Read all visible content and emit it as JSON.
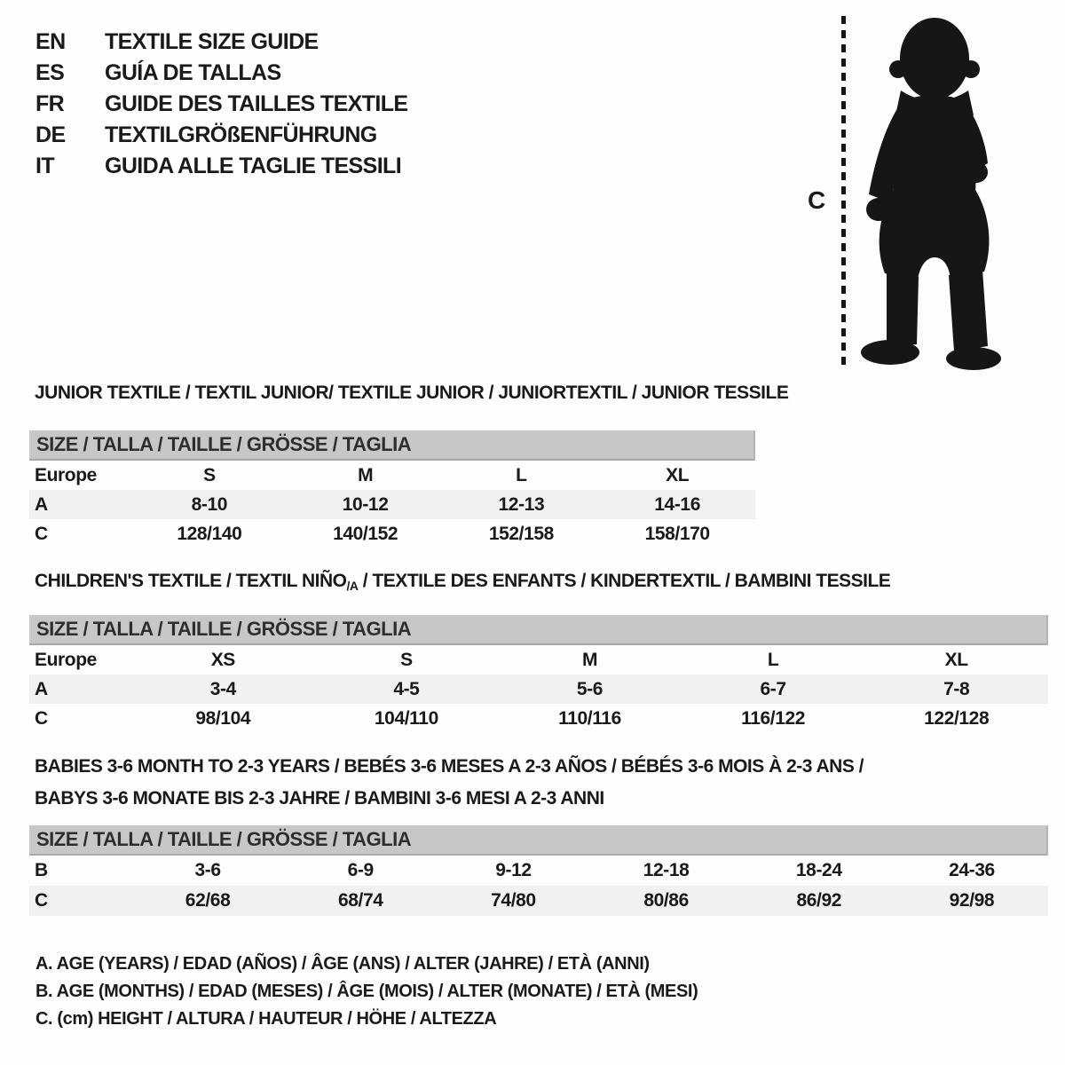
{
  "header": {
    "languages": [
      {
        "code": "EN",
        "title": "TEXTILE SIZE GUIDE"
      },
      {
        "code": "ES",
        "title": "GUÍA DE TALLAS"
      },
      {
        "code": "FR",
        "title": "GUIDE DES TAILLES TEXTILE"
      },
      {
        "code": "DE",
        "title": "TEXTILGRÖßENFÜHRUNG"
      },
      {
        "code": "IT",
        "title": "GUIDA ALLE TAGLIE TESSILI"
      }
    ]
  },
  "figure": {
    "image": "toddler-silhouette",
    "measure_label": "C"
  },
  "sections": [
    {
      "id": "junior",
      "title": "JUNIOR TEXTILE / TEXTIL JUNIOR/ TEXTILE JUNIOR / JUNIORTEXTIL / JUNIOR TESSILE",
      "size_header": "SIZE / TALLA / TAILLE / GRÖSSE / TAGLIA",
      "rows": [
        {
          "label": "Europe",
          "values": [
            "S",
            "M",
            "L",
            "XL"
          ],
          "shaded": false
        },
        {
          "label": "A",
          "values": [
            "8-10",
            "10-12",
            "12-13",
            "14-16"
          ],
          "shaded": true
        },
        {
          "label": "C",
          "values": [
            "128/140",
            "140/152",
            "152/158",
            "158/170"
          ],
          "shaded": false
        }
      ]
    },
    {
      "id": "children",
      "title_pre": "CHILDREN'S TEXTILE / TEXTIL NIÑO",
      "title_sub": "/A",
      "title_post": " / TEXTILE DES ENFANTS / KINDERTEXTIL / BAMBINI TESSILE",
      "size_header": "SIZE / TALLA / TAILLE / GRÖSSE / TAGLIA",
      "rows": [
        {
          "label": "Europe",
          "values": [
            "XS",
            "S",
            "M",
            "L",
            "XL"
          ],
          "shaded": false
        },
        {
          "label": "A",
          "values": [
            "3-4",
            "4-5",
            "5-6",
            "6-7",
            "7-8"
          ],
          "shaded": true
        },
        {
          "label": "C",
          "values": [
            "98/104",
            "104/110",
            "110/116",
            "116/122",
            "122/128"
          ],
          "shaded": false
        }
      ]
    },
    {
      "id": "babies",
      "title_line1": "BABIES 3-6 MONTH TO 2-3 YEARS / BEBÉS 3-6 MESES A 2-3 AÑOS / BÉBÉS 3-6 MOIS À 2-3 ANS /",
      "title_line2": "BABYS 3-6 MONATE BIS 2-3 JAHRE / BAMBINI 3-6 MESI A 2-3 ANNI",
      "size_header": "SIZE / TALLA / TAILLE / GRÖSSE / TAGLIA",
      "rows": [
        {
          "label": "B",
          "values": [
            "3-6",
            "6-9",
            "9-12",
            "12-18",
            "18-24",
            "24-36"
          ],
          "shaded": false
        },
        {
          "label": "C",
          "values": [
            "62/68",
            "68/74",
            "74/80",
            "80/86",
            "86/92",
            "92/98"
          ],
          "shaded": true
        }
      ]
    }
  ],
  "footnotes": [
    "A. AGE (YEARS) / EDAD (AÑOS) / ÂGE (ANS) / ALTER (JAHRE) / ETÀ (ANNI)",
    "B. AGE (MONTHS) / EDAD (MESES) / ÂGE (MOIS) / ALTER (MONATE) / ETÀ (MESI)",
    "C. (cm) HEIGHT / ALTURA / HAUTEUR / HÖHE / ALTEZZA"
  ],
  "colors": {
    "size_header_bg": "#c7c7c7",
    "shaded_row_bg": "#f1f1f1",
    "text": "#1a1a1a",
    "silhouette": "#161616"
  }
}
